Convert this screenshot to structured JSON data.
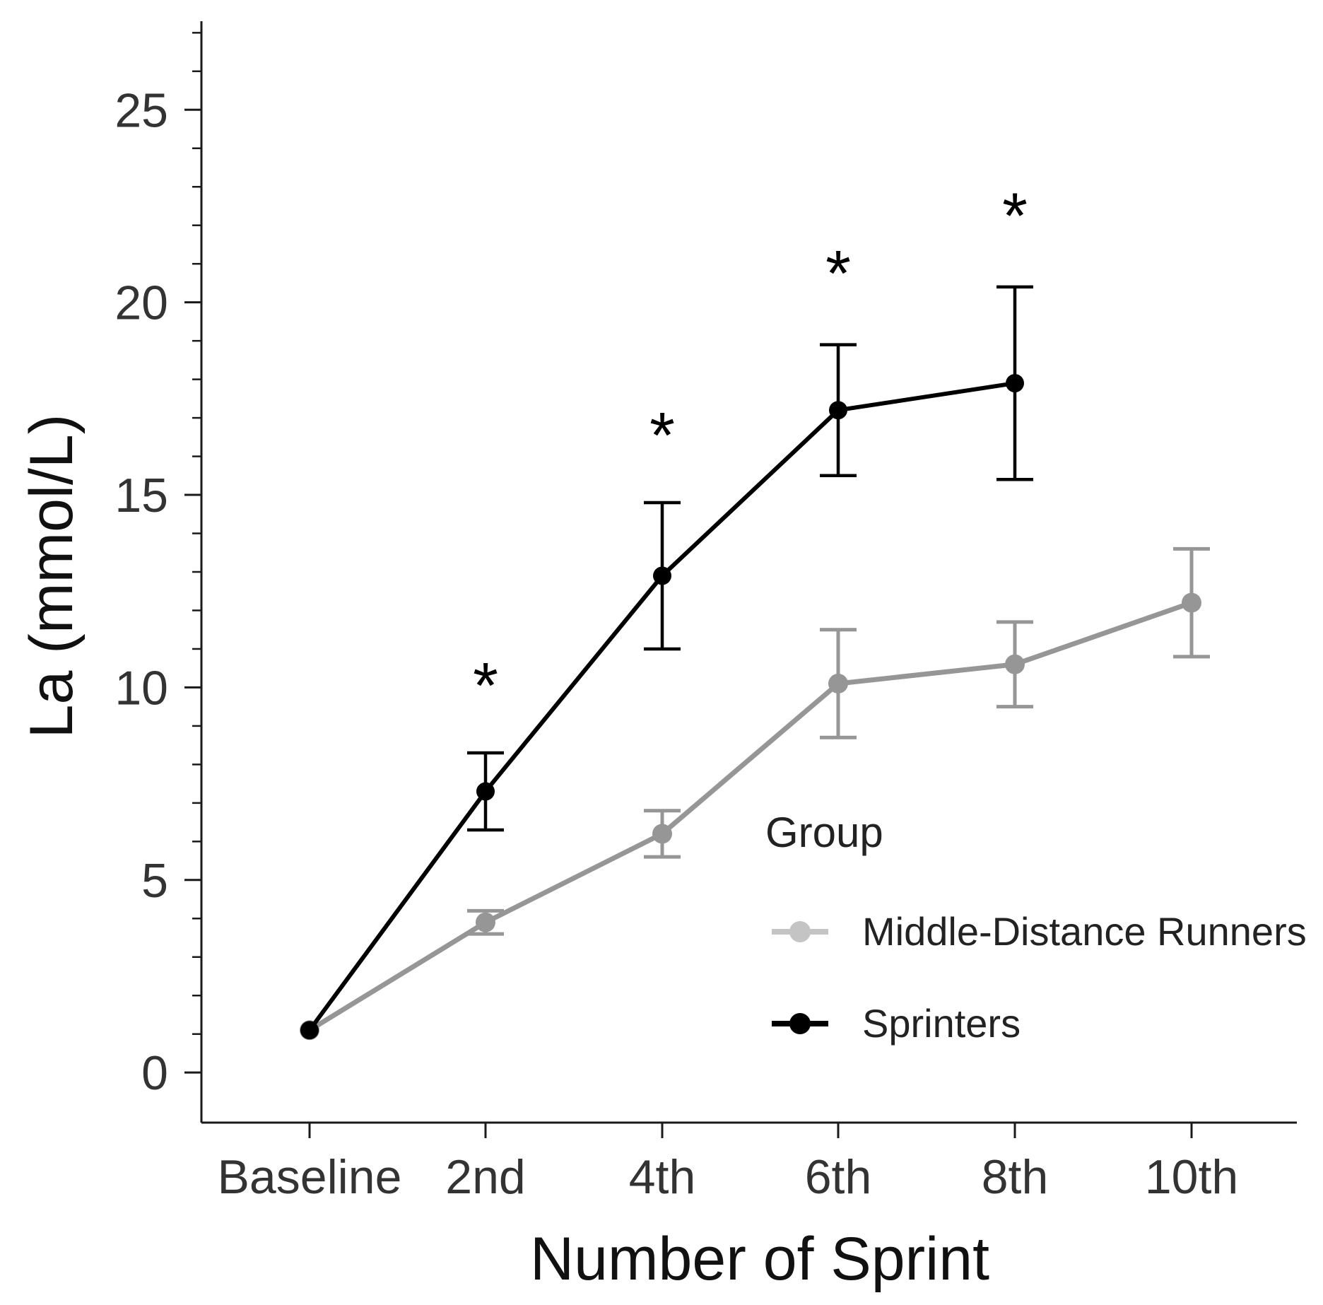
{
  "chart_data": {
    "type": "line",
    "title": "",
    "xlabel": "Number of Sprint",
    "ylabel": "La (mmol/L)",
    "categories": [
      "Baseline",
      "2nd",
      "4th",
      "6th",
      "8th",
      "10th"
    ],
    "ylim": [
      -1.3,
      27.3
    ],
    "yticks": [
      0,
      5,
      10,
      15,
      20,
      25
    ],
    "yminor_step": 1,
    "series": [
      {
        "name": "Middle-Distance Runners",
        "color": "#969696",
        "legend_color": "#c4c4c4",
        "values": [
          1.1,
          3.9,
          6.2,
          10.1,
          10.6,
          12.2
        ],
        "errors": [
          0.1,
          0.3,
          0.6,
          1.4,
          1.1,
          1.4
        ]
      },
      {
        "name": "Sprinters",
        "color": "#000000",
        "legend_color": "#000000",
        "values": [
          1.1,
          7.3,
          12.9,
          17.2,
          17.9,
          null
        ],
        "errors": [
          0.1,
          1.0,
          1.9,
          1.7,
          2.5,
          null
        ]
      }
    ],
    "significance": [
      {
        "category": "2nd",
        "label": "*",
        "y": 10.2
      },
      {
        "category": "4th",
        "label": "*",
        "y": 16.7
      },
      {
        "category": "6th",
        "label": "*",
        "y": 20.9
      },
      {
        "category": "8th",
        "label": "*",
        "y": 22.4
      }
    ],
    "legend": {
      "title": "Group",
      "position": "lower-right"
    }
  }
}
